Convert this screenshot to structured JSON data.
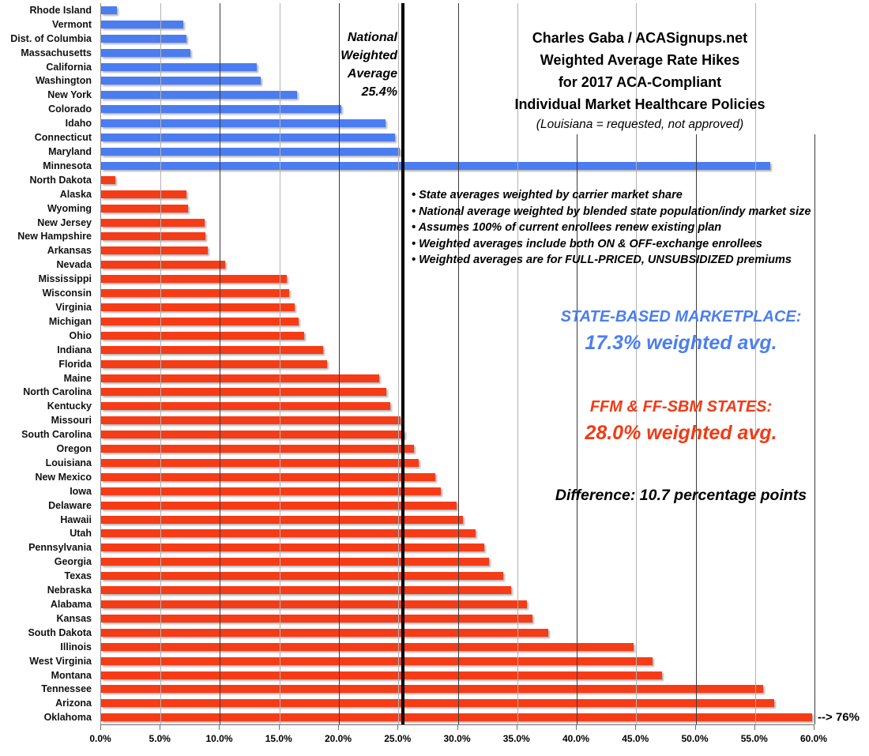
{
  "header": {
    "lines": [
      "Charles Gaba / ACASignups.net",
      "Weighted Average Rate Hikes",
      "for 2017 ACA-Compliant",
      "Individual Market Healthcare Policies"
    ],
    "subtitle": "(Louisiana = requested, not approved)"
  },
  "national_average": {
    "lines": [
      "National",
      "Weighted",
      "Average"
    ],
    "value_label": "25.4%",
    "value": 25.4
  },
  "notes": [
    "State averages weighted by carrier market share",
    "National average weighted by blended state population/indy market size",
    "Assumes 100% of current enrollees renew existing plan",
    "Weighted averages include both ON & OFF-exchange enrollees",
    "Weighted averages are for FULL-PRICED, UNSUBSIDIZED premiums"
  ],
  "sbm_annotation": {
    "label": "STATE-BASED MARKETPLACE:",
    "value_text": "17.3% weighted avg.",
    "color": "#4c7ef0"
  },
  "ffm_annotation": {
    "label": "FFM & FF-SBM STATES:",
    "value_text": "28.0% weighted avg.",
    "color": "#f23a14"
  },
  "difference_note": "Difference: 10.7 percentage points",
  "oklahoma_callout": "--> 76%",
  "x_axis": {
    "ticks": [
      "0.0%",
      "5.0%",
      "10.0%",
      "15.0%",
      "20.0%",
      "25.0%",
      "30.0%",
      "35.0%",
      "40.0%",
      "45.0%",
      "50.0%",
      "55.0%",
      "60.0%"
    ]
  },
  "chart_data": {
    "type": "bar",
    "orientation": "horizontal",
    "title": "Charles Gaba / ACASignups.net Weighted Average Rate Hikes for 2017 ACA-Compliant Individual Market Healthcare Policies",
    "xlim": [
      0,
      60
    ],
    "grid": true,
    "bar_display_max": 59.8,
    "national_weighted_average": 25.4,
    "groups": {
      "SBM": {
        "name": "State-Based Marketplace",
        "color": "#4b7df1",
        "weighted_avg": 17.3
      },
      "FFM": {
        "name": "FFM & FF-SBM States",
        "color": "#f53c17",
        "weighted_avg": 28.0
      }
    },
    "difference_percentage_points": 10.7,
    "bars": [
      {
        "state": "Rhode Island",
        "value": 1.3,
        "group": "SBM"
      },
      {
        "state": "Vermont",
        "value": 6.9,
        "group": "SBM"
      },
      {
        "state": "Dist. of Columbia",
        "value": 7.2,
        "group": "SBM"
      },
      {
        "state": "Massachusetts",
        "value": 7.5,
        "group": "SBM"
      },
      {
        "state": "California",
        "value": 13.1,
        "group": "SBM"
      },
      {
        "state": "Washington",
        "value": 13.4,
        "group": "SBM"
      },
      {
        "state": "New York",
        "value": 16.5,
        "group": "SBM"
      },
      {
        "state": "Colorado",
        "value": 20.2,
        "group": "SBM"
      },
      {
        "state": "Idaho",
        "value": 23.9,
        "group": "SBM"
      },
      {
        "state": "Connecticut",
        "value": 24.7,
        "group": "SBM"
      },
      {
        "state": "Maryland",
        "value": 25.1,
        "group": "SBM"
      },
      {
        "state": "Minnesota",
        "value": 56.3,
        "group": "SBM"
      },
      {
        "state": "North Dakota",
        "value": 1.2,
        "group": "FFM"
      },
      {
        "state": "Alaska",
        "value": 7.2,
        "group": "FFM"
      },
      {
        "state": "Wyoming",
        "value": 7.3,
        "group": "FFM"
      },
      {
        "state": "New Jersey",
        "value": 8.7,
        "group": "FFM"
      },
      {
        "state": "New Hampshire",
        "value": 8.8,
        "group": "FFM"
      },
      {
        "state": "Arkansas",
        "value": 9.0,
        "group": "FFM"
      },
      {
        "state": "Nevada",
        "value": 10.4,
        "group": "FFM"
      },
      {
        "state": "Mississippi",
        "value": 15.6,
        "group": "FFM"
      },
      {
        "state": "Wisconsin",
        "value": 15.8,
        "group": "FFM"
      },
      {
        "state": "Virginia",
        "value": 16.3,
        "group": "FFM"
      },
      {
        "state": "Michigan",
        "value": 16.6,
        "group": "FFM"
      },
      {
        "state": "Ohio",
        "value": 17.1,
        "group": "FFM"
      },
      {
        "state": "Indiana",
        "value": 18.7,
        "group": "FFM"
      },
      {
        "state": "Florida",
        "value": 19.0,
        "group": "FFM"
      },
      {
        "state": "Maine",
        "value": 23.4,
        "group": "FFM"
      },
      {
        "state": "North Carolina",
        "value": 24.0,
        "group": "FFM"
      },
      {
        "state": "Kentucky",
        "value": 24.3,
        "group": "FFM"
      },
      {
        "state": "Missouri",
        "value": 25.2,
        "group": "FFM"
      },
      {
        "state": "South Carolina",
        "value": 25.5,
        "group": "FFM"
      },
      {
        "state": "Oregon",
        "value": 26.3,
        "group": "FFM"
      },
      {
        "state": "Louisiana",
        "value": 26.7,
        "group": "FFM"
      },
      {
        "state": "New Mexico",
        "value": 28.1,
        "group": "FFM"
      },
      {
        "state": "Iowa",
        "value": 28.6,
        "group": "FFM"
      },
      {
        "state": "Delaware",
        "value": 29.9,
        "group": "FFM"
      },
      {
        "state": "Hawaii",
        "value": 30.4,
        "group": "FFM"
      },
      {
        "state": "Utah",
        "value": 31.5,
        "group": "FFM"
      },
      {
        "state": "Pennsylvania",
        "value": 32.2,
        "group": "FFM"
      },
      {
        "state": "Georgia",
        "value": 32.6,
        "group": "FFM"
      },
      {
        "state": "Texas",
        "value": 33.8,
        "group": "FFM"
      },
      {
        "state": "Nebraska",
        "value": 34.5,
        "group": "FFM"
      },
      {
        "state": "Alabama",
        "value": 35.8,
        "group": "FFM"
      },
      {
        "state": "Kansas",
        "value": 36.3,
        "group": "FFM"
      },
      {
        "state": "South Dakota",
        "value": 37.6,
        "group": "FFM"
      },
      {
        "state": "Illinois",
        "value": 44.8,
        "group": "FFM"
      },
      {
        "state": "West Virginia",
        "value": 46.4,
        "group": "FFM"
      },
      {
        "state": "Montana",
        "value": 47.2,
        "group": "FFM"
      },
      {
        "state": "Tennessee",
        "value": 55.7,
        "group": "FFM"
      },
      {
        "state": "Arizona",
        "value": 56.6,
        "group": "FFM"
      },
      {
        "state": "Oklahoma",
        "value": 76.0,
        "group": "FFM",
        "truncated": true
      }
    ]
  }
}
